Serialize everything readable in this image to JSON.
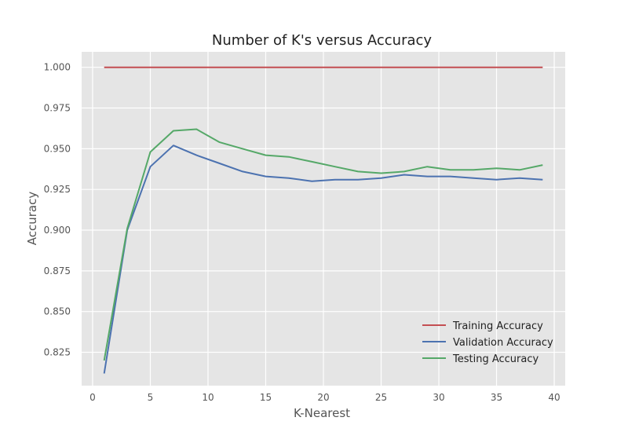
{
  "chart_data": {
    "type": "line",
    "title": "Number of K's versus Accuracy",
    "xlabel": "K-Nearest",
    "ylabel": "Accuracy",
    "xlim": [
      -0.95,
      40.95
    ],
    "ylim": [
      0.8045,
      1.0095
    ],
    "xticks": [
      0,
      5,
      10,
      15,
      20,
      25,
      30,
      35,
      40
    ],
    "yticks": [
      0.825,
      0.85,
      0.875,
      0.9,
      0.925,
      0.95,
      0.975,
      1.0
    ],
    "ytick_labels": [
      "0.825",
      "0.850",
      "0.875",
      "0.900",
      "0.925",
      "0.950",
      "0.975",
      "1.000"
    ],
    "grid": true,
    "legend_position": "lower-right",
    "background": "#e5e5e5",
    "grid_color": "#ffffff",
    "x": [
      1,
      3,
      5,
      7,
      9,
      11,
      13,
      15,
      17,
      19,
      21,
      23,
      25,
      27,
      29,
      31,
      33,
      35,
      37,
      39
    ],
    "series": [
      {
        "name": "Training Accuracy",
        "color": "#c44e52",
        "values": [
          1.0,
          1.0,
          1.0,
          1.0,
          1.0,
          1.0,
          1.0,
          1.0,
          1.0,
          1.0,
          1.0,
          1.0,
          1.0,
          1.0,
          1.0,
          1.0,
          1.0,
          1.0,
          1.0,
          1.0
        ]
      },
      {
        "name": "Validation Accuracy",
        "color": "#4c72b0",
        "values": [
          0.812,
          0.9,
          0.939,
          0.952,
          0.946,
          0.941,
          0.936,
          0.933,
          0.932,
          0.93,
          0.931,
          0.931,
          0.932,
          0.934,
          0.933,
          0.933,
          0.932,
          0.931,
          0.932,
          0.931
        ]
      },
      {
        "name": "Testing Accuracy",
        "color": "#55a868",
        "values": [
          0.82,
          0.901,
          0.948,
          0.961,
          0.962,
          0.954,
          0.95,
          0.946,
          0.945,
          0.942,
          0.939,
          0.936,
          0.935,
          0.936,
          0.939,
          0.937,
          0.937,
          0.938,
          0.937,
          0.94
        ]
      }
    ]
  }
}
